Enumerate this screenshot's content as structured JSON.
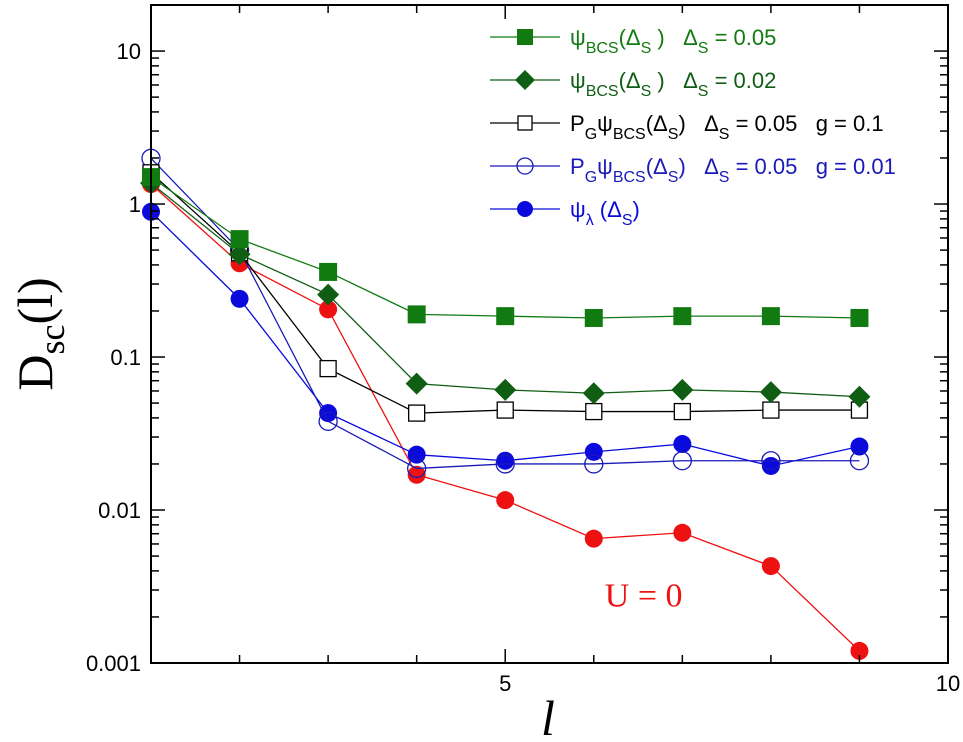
{
  "chart_data": {
    "type": "line",
    "title": "",
    "xlabel": "l",
    "ylabel": {
      "main": "D",
      "sub": "sc",
      "rest": "(l)"
    },
    "xlim": [
      1,
      10
    ],
    "ylim": [
      0.001,
      20
    ],
    "yscale": "log",
    "x_ticks": [
      5,
      10
    ],
    "x_tick_labels": [
      "5",
      "10"
    ],
    "y_ticks": [
      10,
      1,
      0.1,
      0.01,
      0.001
    ],
    "y_tick_labels": [
      "10",
      "1",
      "0.1",
      "0.01",
      "0.001"
    ],
    "grid": false,
    "legend_placement": "top-right",
    "annotation": {
      "text": "U = 0",
      "color": "#ee1111",
      "x": 6.35,
      "y": 0.0028
    },
    "x": [
      1,
      2,
      3,
      4,
      5,
      6,
      7,
      8,
      9
    ],
    "series": [
      {
        "name": "ψBCS(ΔS) ΔS = 0.05",
        "color": "#117a11",
        "marker": "square-filled",
        "label": [
          {
            "t": "ψ"
          },
          {
            "t": "BCS",
            "sub": true
          },
          {
            "t": "(Δ"
          },
          {
            "t": "S",
            "sub": true
          },
          {
            "t": " )   Δ"
          },
          {
            "t": "S",
            "sub": true
          },
          {
            "t": " = 0.05"
          }
        ],
        "values": [
          1.5,
          0.59,
          0.36,
          0.19,
          0.185,
          0.18,
          0.185,
          0.185,
          0.18
        ]
      },
      {
        "name": "ψBCS(ΔS) ΔS = 0.02",
        "color": "#0f5e14",
        "marker": "diamond-filled",
        "label": [
          {
            "t": "ψ"
          },
          {
            "t": "BCS",
            "sub": true
          },
          {
            "t": "(Δ"
          },
          {
            "t": "S",
            "sub": true
          },
          {
            "t": " )   Δ"
          },
          {
            "t": "S",
            "sub": true
          },
          {
            "t": " = 0.02"
          }
        ],
        "values": [
          1.37,
          0.47,
          0.256,
          0.067,
          0.061,
          0.058,
          0.061,
          0.059,
          0.055
        ]
      },
      {
        "name": "PGψBCS(ΔS) ΔS = 0.05 g = 0.1",
        "color": "#000000",
        "marker": "square-open",
        "label": [
          {
            "t": "P"
          },
          {
            "t": "G",
            "sub": true
          },
          {
            "t": "ψ"
          },
          {
            "t": "BCS",
            "sub": true
          },
          {
            "t": "(Δ"
          },
          {
            "t": "S",
            "sub": true
          },
          {
            "t": ")   Δ"
          },
          {
            "t": "S",
            "sub": true
          },
          {
            "t": " = 0.05   g = 0.1"
          }
        ],
        "values": [
          1.6,
          0.48,
          0.084,
          0.043,
          0.045,
          0.044,
          0.044,
          0.045,
          0.045
        ]
      },
      {
        "name": "PGψBCS(ΔS) ΔS = 0.05 g = 0.01",
        "color": "#1a1ab8",
        "marker": "circle-open",
        "label": [
          {
            "t": "P"
          },
          {
            "t": "G",
            "sub": true
          },
          {
            "t": "ψ"
          },
          {
            "t": "BCS",
            "sub": true
          },
          {
            "t": "(Δ"
          },
          {
            "t": "S",
            "sub": true
          },
          {
            "t": ")   Δ"
          },
          {
            "t": "S",
            "sub": true
          },
          {
            "t": " = 0.05   g = 0.01"
          }
        ],
        "values": [
          1.99,
          0.5,
          0.038,
          0.0187,
          0.02,
          0.02,
          0.021,
          0.021,
          0.021
        ]
      },
      {
        "name": "ψλ(ΔS)",
        "color": "#0a0add",
        "marker": "circle-filled",
        "label": [
          {
            "t": "ψ"
          },
          {
            "t": "λ",
            "sub": true
          },
          {
            "t": " (Δ"
          },
          {
            "t": "S",
            "sub": true
          },
          {
            "t": ")"
          }
        ],
        "values": [
          0.89,
          0.24,
          0.043,
          0.023,
          0.021,
          0.024,
          0.027,
          0.0194,
          0.026
        ]
      },
      {
        "name": "U = 0",
        "color": "#ee1111",
        "marker": "circle-filled",
        "in_legend": false,
        "values": [
          1.35,
          0.41,
          0.205,
          0.017,
          0.0116,
          0.0065,
          0.0071,
          0.0043,
          0.0012
        ]
      }
    ]
  }
}
